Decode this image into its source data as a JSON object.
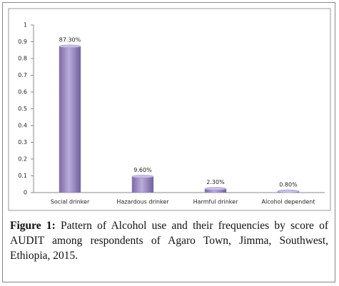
{
  "chart_data": {
    "type": "bar",
    "categories": [
      "Social drinker",
      "Hazardous drinker",
      "Harmful drinker",
      "Alcohol dependent"
    ],
    "values": [
      0.873,
      0.096,
      0.023,
      0.008
    ],
    "value_labels": [
      "87.30%",
      "9.60%",
      "2.30%",
      "0.80%"
    ],
    "color": "#9b8cc0",
    "ylim": [
      0,
      1
    ],
    "yticks": [
      0,
      0.1,
      0.2,
      0.3,
      0.4,
      0.5,
      0.6,
      0.7,
      0.8,
      0.9,
      1
    ],
    "caption_label": "Figure 1:",
    "caption": "Pattern of Alcohol use and their frequencies by score of AUDIT among respondents of Agaro Town, Jimma, Southwest, Ethiopia, 2015."
  }
}
